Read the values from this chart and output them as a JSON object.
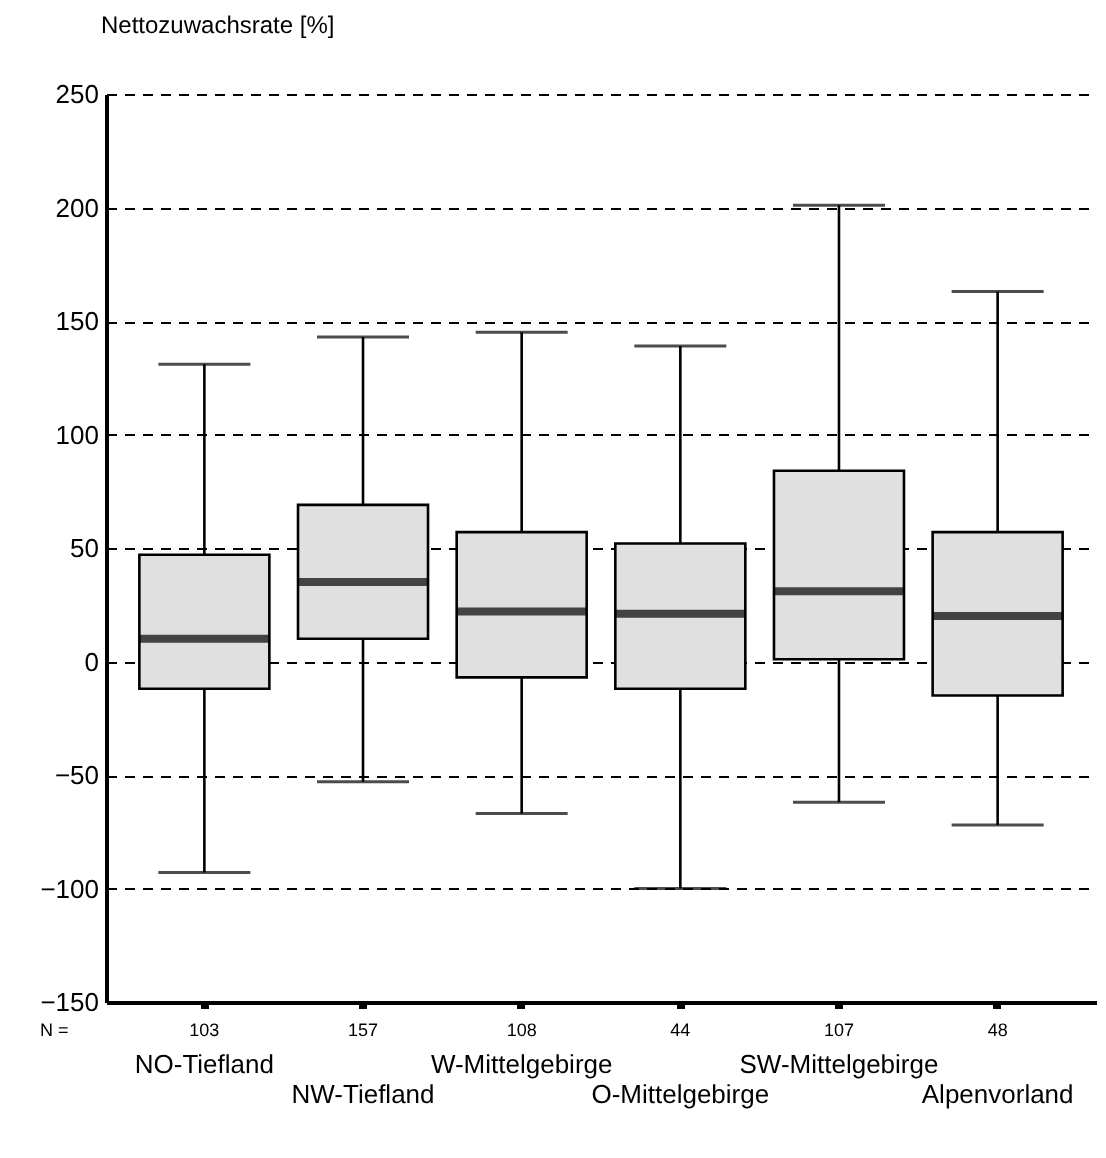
{
  "chart_data": {
    "type": "box",
    "ylabel": "Nettozuwachsrate [%]",
    "categories": [
      "NO-Tiefland",
      "NW-Tiefland",
      "W-Mittelgebirge",
      "O-Mittelgebirge",
      "SW-Mittelgebirge",
      "Alpenvorland"
    ],
    "boxes": [
      {
        "low": -93,
        "q1": -12,
        "median": 10,
        "q3": 47,
        "high": 131
      },
      {
        "low": -53,
        "q1": 10,
        "median": 35,
        "q3": 69,
        "high": 143
      },
      {
        "low": -67,
        "q1": -7,
        "median": 22,
        "q3": 57,
        "high": 145
      },
      {
        "low": -100,
        "q1": -12,
        "median": 21,
        "q3": 52,
        "high": 139
      },
      {
        "low": -62,
        "q1": 1,
        "median": 31,
        "q3": 84,
        "high": 201
      },
      {
        "low": -72,
        "q1": -15,
        "median": 20,
        "q3": 57,
        "high": 163
      }
    ],
    "color": "#e0e0e0",
    "ylim": [
      -150,
      250
    ],
    "yticks": [
      -150,
      -100,
      -50,
      0,
      50,
      100,
      150,
      200,
      250
    ],
    "grid": "y",
    "annotations": [
      "N =",
      "103",
      "157",
      "108",
      "44",
      "107",
      "48"
    ]
  }
}
